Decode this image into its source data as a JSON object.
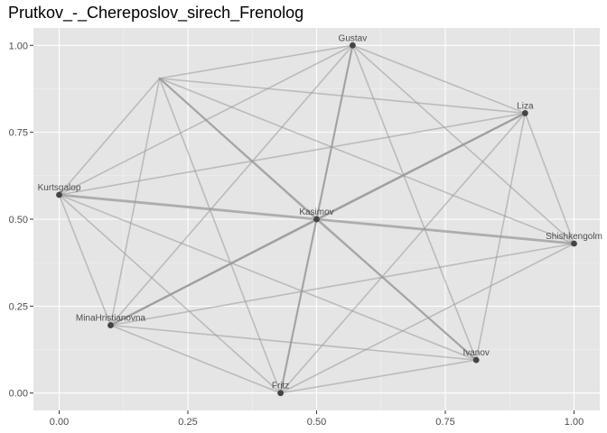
{
  "chart_data": {
    "type": "scatter",
    "title": "Prutkov_-_Chereposlov_sirech_Frenolog",
    "xlabel": "",
    "ylabel": "",
    "xlim": [
      -0.05,
      1.05
    ],
    "ylim": [
      -0.05,
      1.05
    ],
    "x_ticks": [
      0.0,
      0.25,
      0.5,
      0.75,
      1.0
    ],
    "x_tick_labels": [
      "0.00",
      "0.25",
      "0.50",
      "0.75",
      "1.00"
    ],
    "y_ticks": [
      0.0,
      0.25,
      0.5,
      0.75,
      1.0
    ],
    "y_tick_labels": [
      "0.00",
      "0.25",
      "0.50",
      "0.75",
      "1.00"
    ],
    "grid": true,
    "colors": {
      "panel": "#e5e5e5",
      "grid_major": "#ffffff",
      "edge": "#999999",
      "node": "#444444",
      "label": "#4d4d4d"
    },
    "nodes": [
      {
        "id": "Gustav",
        "label": "Gustav",
        "x": 0.57,
        "y": 1.0
      },
      {
        "id": "Liza",
        "label": "Liza",
        "x": 0.905,
        "y": 0.805
      },
      {
        "id": "Kurtsgalop",
        "label": "Kurtsgalop",
        "x": 0.0,
        "y": 0.57
      },
      {
        "id": "Kasimov",
        "label": "Kasimov",
        "x": 0.5,
        "y": 0.5
      },
      {
        "id": "Shishkengolm",
        "label": "Shishkengolm",
        "x": 1.0,
        "y": 0.43
      },
      {
        "id": "MinaHristianovna",
        "label": "MinaHristianovna",
        "x": 0.1,
        "y": 0.195
      },
      {
        "id": "Ivanov",
        "label": "Ivanov",
        "x": 0.81,
        "y": 0.095
      },
      {
        "id": "Fritz",
        "label": "Fritz",
        "x": 0.43,
        "y": 0.0
      },
      {
        "id": "unlabeled",
        "label": "",
        "x": 0.195,
        "y": 0.905
      }
    ],
    "edges": [
      {
        "source": "Kasimov",
        "target": "Gustav",
        "weight": 2
      },
      {
        "source": "Kasimov",
        "target": "Liza",
        "weight": 2
      },
      {
        "source": "Kasimov",
        "target": "Kurtsgalop",
        "weight": 3
      },
      {
        "source": "Kasimov",
        "target": "Shishkengolm",
        "weight": 3
      },
      {
        "source": "Kasimov",
        "target": "MinaHristianovna",
        "weight": 2
      },
      {
        "source": "Kasimov",
        "target": "Ivanov",
        "weight": 2
      },
      {
        "source": "Kasimov",
        "target": "Fritz",
        "weight": 2
      },
      {
        "source": "Kasimov",
        "target": "unlabeled",
        "weight": 2
      },
      {
        "source": "unlabeled",
        "target": "Gustav",
        "weight": 1
      },
      {
        "source": "unlabeled",
        "target": "Liza",
        "weight": 1
      },
      {
        "source": "unlabeled",
        "target": "Kurtsgalop",
        "weight": 1
      },
      {
        "source": "unlabeled",
        "target": "MinaHristianovna",
        "weight": 1
      },
      {
        "source": "unlabeled",
        "target": "Fritz",
        "weight": 1
      },
      {
        "source": "unlabeled",
        "target": "Ivanov",
        "weight": 1
      },
      {
        "source": "unlabeled",
        "target": "Shishkengolm",
        "weight": 1
      },
      {
        "source": "Gustav",
        "target": "Liza",
        "weight": 1
      },
      {
        "source": "Gustav",
        "target": "Kurtsgalop",
        "weight": 1
      },
      {
        "source": "Gustav",
        "target": "Shishkengolm",
        "weight": 1
      },
      {
        "source": "Gustav",
        "target": "MinaHristianovna",
        "weight": 1
      },
      {
        "source": "Gustav",
        "target": "Ivanov",
        "weight": 1
      },
      {
        "source": "Gustav",
        "target": "Fritz",
        "weight": 1
      },
      {
        "source": "Liza",
        "target": "Kurtsgalop",
        "weight": 1
      },
      {
        "source": "Liza",
        "target": "Shishkengolm",
        "weight": 1
      },
      {
        "source": "Liza",
        "target": "MinaHristianovna",
        "weight": 2
      },
      {
        "source": "Liza",
        "target": "Ivanov",
        "weight": 1
      },
      {
        "source": "Liza",
        "target": "Fritz",
        "weight": 1
      },
      {
        "source": "Kurtsgalop",
        "target": "MinaHristianovna",
        "weight": 1
      },
      {
        "source": "Kurtsgalop",
        "target": "Ivanov",
        "weight": 1
      },
      {
        "source": "Kurtsgalop",
        "target": "Fritz",
        "weight": 1
      },
      {
        "source": "Shishkengolm",
        "target": "MinaHristianovna",
        "weight": 1
      },
      {
        "source": "Shishkengolm",
        "target": "Fritz",
        "weight": 1
      },
      {
        "source": "MinaHristianovna",
        "target": "Ivanov",
        "weight": 1
      },
      {
        "source": "MinaHristianovna",
        "target": "Fritz",
        "weight": 1
      },
      {
        "source": "Ivanov",
        "target": "Fritz",
        "weight": 1
      }
    ]
  }
}
